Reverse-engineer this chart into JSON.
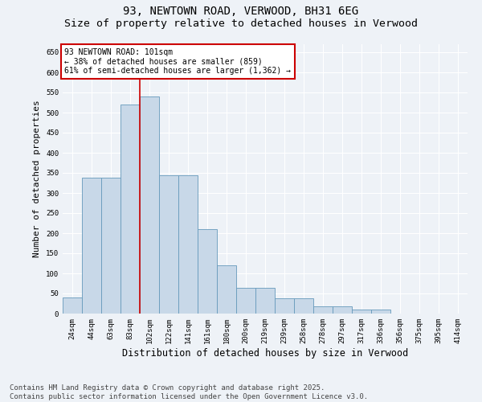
{
  "title_line1": "93, NEWTOWN ROAD, VERWOOD, BH31 6EG",
  "title_line2": "Size of property relative to detached houses in Verwood",
  "xlabel": "Distribution of detached houses by size in Verwood",
  "ylabel": "Number of detached properties",
  "categories": [
    "24sqm",
    "44sqm",
    "63sqm",
    "83sqm",
    "102sqm",
    "122sqm",
    "141sqm",
    "161sqm",
    "180sqm",
    "200sqm",
    "219sqm",
    "239sqm",
    "258sqm",
    "278sqm",
    "297sqm",
    "317sqm",
    "336sqm",
    "356sqm",
    "375sqm",
    "395sqm",
    "414sqm"
  ],
  "values": [
    40,
    338,
    338,
    520,
    540,
    345,
    345,
    210,
    120,
    65,
    65,
    38,
    38,
    18,
    18,
    10,
    10,
    0,
    0,
    0,
    0
  ],
  "bar_color": "#c8d8e8",
  "bar_edge_color": "#6699bb",
  "vline_x_index": 4,
  "annotation_text": "93 NEWTOWN ROAD: 101sqm\n← 38% of detached houses are smaller (859)\n61% of semi-detached houses are larger (1,362) →",
  "annotation_box_facecolor": "#ffffff",
  "annotation_box_edgecolor": "#cc0000",
  "vline_color": "#cc0000",
  "ylim": [
    0,
    670
  ],
  "yticks": [
    0,
    50,
    100,
    150,
    200,
    250,
    300,
    350,
    400,
    450,
    500,
    550,
    600,
    650
  ],
  "bg_color": "#eef2f7",
  "grid_color": "#ffffff",
  "title_fontsize": 10,
  "tick_fontsize": 6.5,
  "ylabel_fontsize": 8,
  "xlabel_fontsize": 8.5,
  "annot_fontsize": 7,
  "footer_fontsize": 6.5,
  "footer_text": "Contains HM Land Registry data © Crown copyright and database right 2025.\nContains public sector information licensed under the Open Government Licence v3.0."
}
